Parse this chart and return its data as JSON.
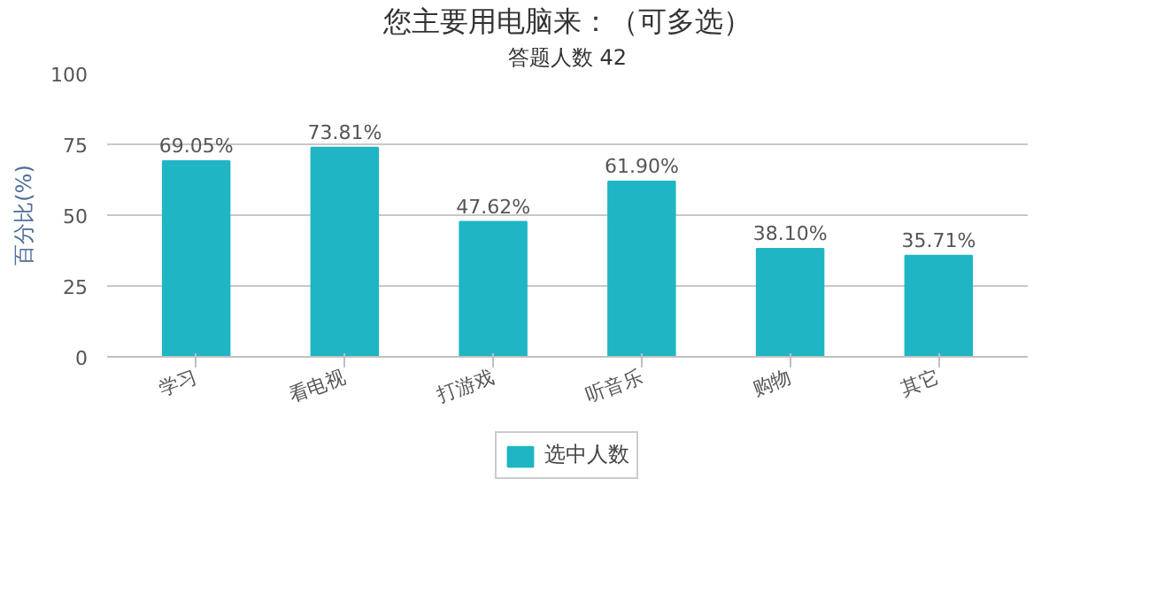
{
  "chart_data": {
    "type": "bar",
    "title": "您主要用电脑来：（可多选）",
    "subtitle": "答题人数 42",
    "ylabel": "百分比(%)",
    "categories": [
      "学习",
      "看电视",
      "打游戏",
      "听音乐",
      "购物",
      "其它"
    ],
    "series": [
      {
        "name": "选中人数",
        "color": "#1fb5c4",
        "values": [
          69.05,
          73.81,
          47.62,
          61.9,
          38.1,
          35.71
        ],
        "value_labels": [
          "69.05%",
          "73.81%",
          "47.62%",
          "61.90%",
          "38.10%",
          "35.71%"
        ]
      }
    ],
    "ylim": [
      0,
      100
    ],
    "yticks": [
      0,
      25,
      50,
      75,
      100
    ],
    "grid": "y",
    "legend": "bottom"
  }
}
